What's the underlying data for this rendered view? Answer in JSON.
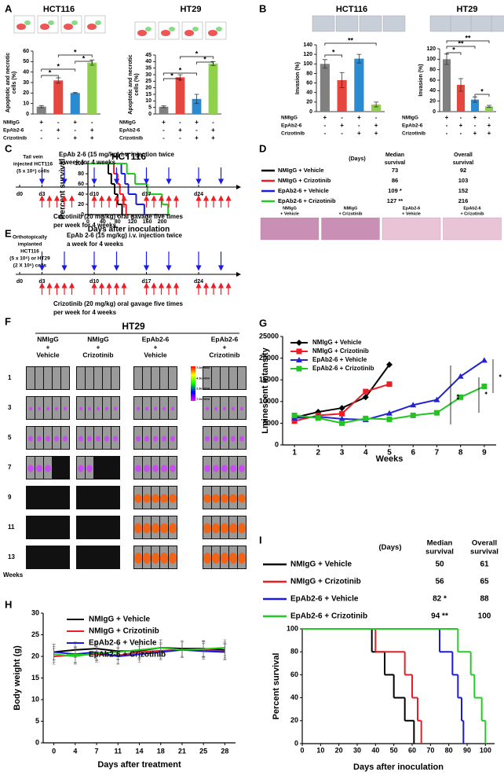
{
  "panel_labels": [
    "A",
    "B",
    "C",
    "D",
    "E",
    "F",
    "G",
    "H",
    "I"
  ],
  "treatments": {
    "names": [
      "NMIgG",
      "EpAb2-6",
      "Crizotinib"
    ],
    "signs": [
      [
        "+",
        "-",
        "+",
        "-"
      ],
      [
        "-",
        "+",
        "-",
        "+"
      ],
      [
        "-",
        "-",
        "+",
        "+"
      ]
    ]
  },
  "timelines": [
    {
      "cells": [
        "Tail vein",
        "injected HCT116",
        "(5 x 10⁶) cells"
      ],
      "antibody": [
        "EpAb 2-6 (15 mg/kg) i.v. injection twice",
        "a week for 4 weeks"
      ],
      "drug": [
        "Crizotinib  (20 mg/kg) oral gavage five times",
        "per week for 4 weeks"
      ],
      "days": [
        "d0",
        "d3",
        "d10",
        "d17",
        "d24"
      ]
    },
    {
      "cells": [
        "Orthotopically",
        "implanted",
        "HCT116",
        "(5 x 10⁶) or HT29",
        "(2 X 10⁶) cells"
      ],
      "antibody": [
        "EpAb 2-6 (15 mg/kg) i.v. injection twice",
        "a week for 4 weeks"
      ],
      "drug": [
        "Crizotinib  (20 mg/kg) oral gavage five times",
        "per week for 4 weeks"
      ],
      "days": [
        "d0",
        "d3",
        "d10",
        "d17",
        "d24"
      ]
    }
  ],
  "imaging": {
    "title": "HT29",
    "columns": [
      [
        "NMIgG",
        "+",
        "Vehicle"
      ],
      [
        "NMIgG",
        "+",
        "Crizotinib"
      ],
      [
        "EpAb2-6",
        "+",
        "Vehicle"
      ],
      [
        "EpAb2-6",
        "+",
        "Crizotinib"
      ]
    ],
    "rows": [
      "1",
      "3",
      "5",
      "7",
      "9",
      "11",
      "13"
    ],
    "row_title": "Weeks",
    "colorbar": [
      "7.0e+004",
      "4.9e+004",
      "2.8e+004",
      "7.0e+003"
    ]
  },
  "chart_data": [
    {
      "type": "bar",
      "title": "HCT116",
      "ylabel": [
        "Apoptotic and necrotic",
        "cells (%)"
      ],
      "values": [
        7,
        32,
        20,
        49
      ],
      "errors": [
        1,
        2.5,
        0.5,
        2.5
      ],
      "colors": [
        "#808080",
        "#e5473f",
        "#2b8bd0",
        "#8fd14f"
      ],
      "ylim": [
        0,
        60
      ],
      "yticks": [
        0,
        10,
        20,
        30,
        40,
        50,
        60
      ],
      "annotations": [
        "*",
        "*",
        "*",
        "*"
      ]
    },
    {
      "type": "bar",
      "title": "HT29",
      "ylabel": [
        "Apoptotic and necrotic",
        "cells (%)"
      ],
      "values": [
        5.5,
        28,
        11.5,
        38.5
      ],
      "errors": [
        0.7,
        2,
        3.5,
        1.5
      ],
      "colors": [
        "#808080",
        "#e5473f",
        "#2b8bd0",
        "#8fd14f"
      ],
      "ylim": [
        0,
        45
      ],
      "yticks": [
        0,
        5,
        10,
        15,
        20,
        25,
        30,
        35,
        40,
        45
      ],
      "annotations": [
        "*",
        "*",
        "*",
        "*"
      ]
    },
    {
      "type": "bar",
      "title": "HCT116",
      "ylabel": [
        "Invasion (%)"
      ],
      "values": [
        100,
        66,
        111,
        15
      ],
      "errors": [
        9,
        16,
        9,
        5
      ],
      "colors": [
        "#808080",
        "#e5473f",
        "#2b8bd0",
        "#8fd14f"
      ],
      "ylim": [
        0,
        140
      ],
      "yticks": [
        0,
        20,
        40,
        60,
        80,
        100,
        120,
        140
      ],
      "annotations": [
        "*",
        "**"
      ]
    },
    {
      "type": "bar",
      "title": "HT29",
      "ylabel": [
        "Invasion (%)"
      ],
      "values": [
        100,
        51,
        23,
        10
      ],
      "errors": [
        10,
        12,
        5,
        2
      ],
      "colors": [
        "#808080",
        "#e5473f",
        "#2b8bd0",
        "#8fd14f"
      ],
      "ylim": [
        0,
        120
      ],
      "yticks": [
        0,
        20,
        40,
        60,
        80,
        100,
        120
      ],
      "annotations": [
        "*",
        "**",
        "**",
        "*"
      ]
    },
    {
      "type": "survival",
      "title": "HCT116",
      "xlabel": "Days after inoculation",
      "ylabel": "Percent survival",
      "xlim": [
        0,
        220
      ],
      "xticks": [
        0,
        40,
        80,
        120,
        160,
        200
      ],
      "ylim": [
        0,
        100
      ],
      "yticks": [
        0,
        20,
        40,
        60,
        80,
        100
      ],
      "series": [
        {
          "name": "NMIgG + Vehicle",
          "color": "#000000",
          "x": [
            0,
            55,
            63,
            72,
            80,
            92
          ],
          "values": [
            100,
            80,
            60,
            40,
            20,
            0
          ]
        },
        {
          "name": "NMIgG + Crizotinib",
          "color": "#ee1c25",
          "x": [
            0,
            70,
            80,
            86,
            95,
            103
          ],
          "values": [
            100,
            80,
            60,
            40,
            20,
            0
          ]
        },
        {
          "name": "EpAb2-6 + Vehicle",
          "color": "#1a1ae6",
          "x": [
            0,
            90,
            100,
            109,
            130,
            152
          ],
          "values": [
            100,
            80,
            60,
            40,
            20,
            0
          ]
        },
        {
          "name": "EpAb2-6 + Crizotinib",
          "color": "#22cc22",
          "x": [
            0,
            105,
            127,
            160,
            200,
            216
          ],
          "values": [
            100,
            80,
            60,
            40,
            20,
            0
          ]
        }
      ],
      "table": {
        "header": [
          [
            "(Days)"
          ],
          [
            "Median",
            "survival"
          ],
          [
            "Overall",
            "survival"
          ]
        ],
        "median": [
          "73",
          "86",
          "109 *",
          "127 **"
        ],
        "overall": [
          "92",
          "103",
          "152",
          "216"
        ]
      },
      "histology": [
        [
          "NMIgG",
          "+ Vehicle"
        ],
        [
          "NMIgG",
          "+ Crizotinib"
        ],
        [
          "EpAb2-6",
          "+ Vehicle"
        ],
        [
          "EpAb2-6",
          "+ Crizotinib"
        ]
      ]
    },
    {
      "type": "line",
      "xlabel": "Weeks",
      "ylabel": "Lminescent intansity",
      "x": [
        1,
        2,
        3,
        4,
        5,
        6,
        7,
        8,
        9
      ],
      "xlim": [
        0.5,
        9.5
      ],
      "xticks": [
        1,
        2,
        3,
        4,
        5,
        6,
        7,
        8,
        9
      ],
      "ylim": [
        0,
        25000
      ],
      "yticks": [
        0,
        5000,
        10000,
        15000,
        20000,
        25000
      ],
      "legend": "upper left",
      "annotations": [
        "**",
        "*",
        "*"
      ],
      "series": [
        {
          "name": "NMIgG + Vehicle",
          "color": "#000000",
          "marker": "diamond",
          "values": [
            6300,
            7600,
            8500,
            11000,
            18500,
            null,
            null,
            null,
            null
          ]
        },
        {
          "name": "NMIgG + Crizotinib",
          "color": "#ee1c25",
          "marker": "square",
          "values": [
            5500,
            6800,
            7200,
            12300,
            14000,
            null,
            null,
            null,
            null
          ]
        },
        {
          "name": "EpAb2-6 + Vehicle",
          "color": "#2323d0",
          "marker": "triangle",
          "values": [
            6200,
            6500,
            6000,
            5800,
            7300,
            9200,
            10400,
            15800,
            19500
          ]
        },
        {
          "name": "EpAb2-6 + Crizotinib",
          "color": "#22c322",
          "marker": "square",
          "values": [
            6800,
            6200,
            5000,
            6100,
            5900,
            6800,
            7400,
            11000,
            13500
          ]
        }
      ]
    },
    {
      "type": "line",
      "xlabel": "Days after treatment",
      "ylabel": "Body weight (g)",
      "categories": [
        "0",
        "4",
        "7",
        "11",
        "14",
        "18",
        "21",
        "25",
        "28"
      ],
      "ylim": [
        0,
        30
      ],
      "yticks": [
        0,
        5,
        10,
        15,
        20,
        25,
        30
      ],
      "legend": "upper left",
      "series": [
        {
          "name": "NMIgG + Vehicle",
          "color": "#000000",
          "values": [
            21,
            21.5,
            21.8,
            21.2,
            21.3,
            22,
            21.8,
            21.8,
            21.5
          ]
        },
        {
          "name": "NMIgG + Crizotinib",
          "color": "#ee1c25",
          "values": [
            20,
            20.3,
            20.5,
            20.2,
            21,
            21.3,
            21.5,
            21.5,
            21.2
          ]
        },
        {
          "name": "EpAb2-6 + Vehicle",
          "color": "#1a1ae6",
          "values": [
            21,
            20.5,
            21,
            20,
            20.5,
            21,
            21.5,
            21.2,
            21
          ]
        },
        {
          "name": "EpAb2-6 + Crizotinib",
          "color": "#22cc22",
          "values": [
            20.5,
            20,
            20.8,
            21,
            21.5,
            22,
            21.5,
            21.7,
            22
          ]
        }
      ]
    },
    {
      "type": "survival",
      "xlabel": "Days after inoculation",
      "ylabel": "Percent survival",
      "xlim": [
        0,
        105
      ],
      "xticks": [
        0,
        10,
        20,
        30,
        40,
        50,
        60,
        70,
        80,
        90,
        100
      ],
      "ylim": [
        0,
        100
      ],
      "yticks": [
        0,
        20,
        40,
        60,
        80,
        100
      ],
      "series": [
        {
          "name": "NMIgG + Vehicle",
          "color": "#000000",
          "x": [
            0,
            38,
            45,
            50,
            56,
            61
          ],
          "values": [
            100,
            80,
            60,
            40,
            20,
            0
          ]
        },
        {
          "name": "NMIgG + Crizotinib",
          "color": "#ee1c25",
          "x": [
            0,
            40,
            56,
            60,
            63,
            65
          ],
          "values": [
            100,
            80,
            60,
            40,
            20,
            0
          ]
        },
        {
          "name": "EpAb2-6 + Vehicle",
          "color": "#1a1ae6",
          "x": [
            0,
            75,
            82,
            85,
            87,
            88
          ],
          "values": [
            100,
            80,
            60,
            40,
            20,
            0
          ]
        },
        {
          "name": "EpAb2-6 + Crizotinib",
          "color": "#22cc22",
          "x": [
            0,
            85,
            92,
            94,
            98,
            100
          ],
          "values": [
            100,
            80,
            60,
            40,
            20,
            0
          ]
        }
      ],
      "table": {
        "header": [
          [
            "(Days)"
          ],
          [
            "Median",
            "survival"
          ],
          [
            "Overall",
            "survival"
          ]
        ],
        "median": [
          "50",
          "56",
          "82  *",
          "94  **"
        ],
        "overall": [
          "61",
          "65",
          "88",
          "100"
        ]
      }
    }
  ]
}
